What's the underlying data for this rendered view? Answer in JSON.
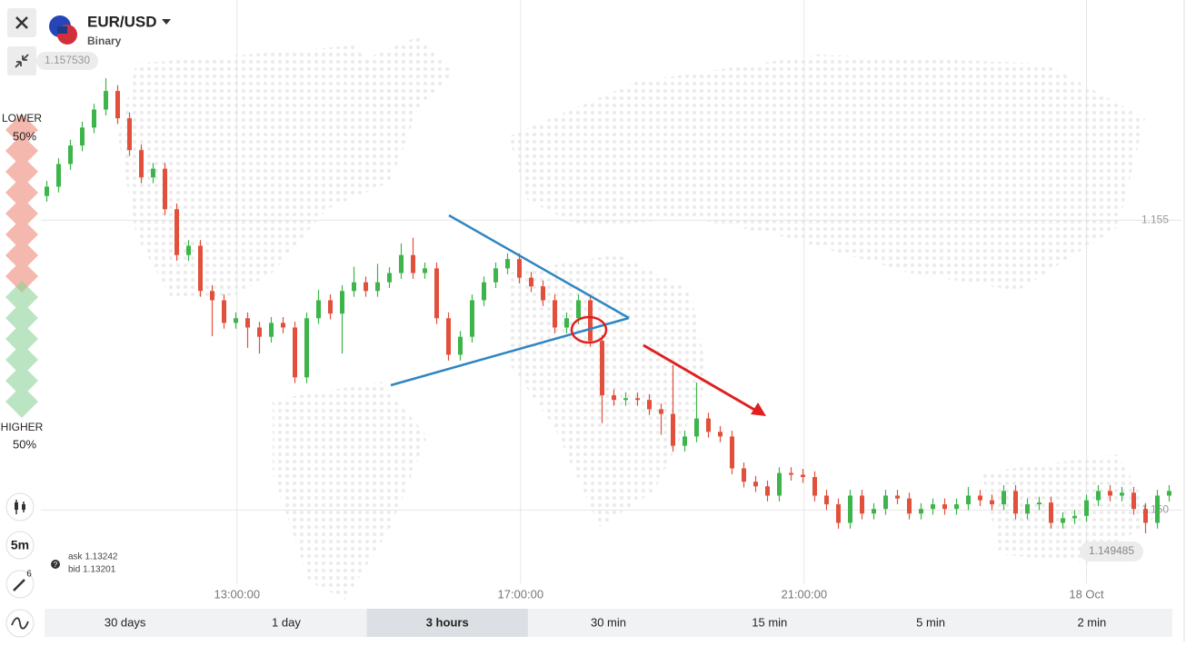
{
  "header": {
    "asset": "EUR/USD",
    "mode": "Binary",
    "max_price_label": "1.157530"
  },
  "sentiment": {
    "lower_label": "LOWER",
    "lower_pct": "50%",
    "higher_label": "HIGHER",
    "higher_pct": "50%"
  },
  "toolbar": {
    "interval": "5m",
    "drawings_count": "6"
  },
  "quote": {
    "ask": "ask 1.13242",
    "bid": "bid 1.13201"
  },
  "chart_data": {
    "type": "candlestick",
    "up_color": "#3db54a",
    "down_color": "#e2503c",
    "grid": true,
    "last_price_label": "1.149485",
    "xlim": [
      0,
      96
    ],
    "xticks": [
      {
        "value": 16.6,
        "label": "13:00:00"
      },
      {
        "value": 40.6,
        "label": "17:00:00"
      },
      {
        "value": 64.6,
        "label": "21:00:00"
      },
      {
        "value": 88.5,
        "label": "18 Oct"
      }
    ],
    "ylim": [
      1.1484,
      1.1588
    ],
    "yticks": [
      1.155,
      {
        "value": 1.15,
        "label": "1.150"
      }
    ],
    "open": [
      1.15542,
      1.15558,
      1.15597,
      1.15629,
      1.1566,
      1.15691,
      1.15723,
      1.15676,
      1.15621,
      1.15574,
      1.15589,
      1.15519,
      1.1544,
      1.15456,
      1.15378,
      1.15362,
      1.15323,
      1.15331,
      1.15315,
      1.15299,
      1.15323,
      1.15315,
      1.15229,
      1.15331,
      1.15362,
      1.15339,
      1.15378,
      1.15393,
      1.15378,
      1.15393,
      1.15409,
      1.1544,
      1.15409,
      1.15417,
      1.15331,
      1.15268,
      1.15299,
      1.15362,
      1.15393,
      1.15417,
      1.15433,
      1.15401,
      1.15386,
      1.15362,
      1.15315,
      1.15331,
      1.15362,
      1.15292,
      1.15198,
      1.1519,
      1.15193,
      1.1519,
      1.15174,
      1.15166,
      1.15111,
      1.15127,
      1.15158,
      1.15135,
      1.15127,
      1.15072,
      1.15049,
      1.15041,
      1.15025,
      1.15064,
      1.15061,
      1.15057,
      1.15025,
      1.1501,
      1.14978,
      1.15025,
      1.14994,
      1.15002,
      1.15025,
      1.1502,
      1.14994,
      1.15002,
      1.1501,
      1.15002,
      1.1501,
      1.15025,
      1.15017,
      1.1501,
      1.15033,
      1.14994,
      1.1501,
      1.15013,
      1.14978,
      1.14986,
      1.1499,
      1.15017,
      1.15033,
      1.15025,
      1.1503,
      1.15002,
      1.14978,
      1.15025
    ],
    "high": [
      1.15568,
      1.15607,
      1.15639,
      1.1567,
      1.15701,
      1.15745,
      1.15733,
      1.15686,
      1.15631,
      1.15599,
      1.15599,
      1.15529,
      1.15466,
      1.15466,
      1.15388,
      1.15372,
      1.15341,
      1.15341,
      1.15325,
      1.15333,
      1.15333,
      1.15325,
      1.15341,
      1.1538,
      1.15372,
      1.15388,
      1.1542,
      1.15403,
      1.15425,
      1.15419,
      1.1546,
      1.1547,
      1.15427,
      1.15427,
      1.15341,
      1.15309,
      1.15372,
      1.15403,
      1.15427,
      1.15443,
      1.15443,
      1.15411,
      1.15396,
      1.15372,
      1.15341,
      1.15372,
      1.15372,
      1.15302,
      1.15208,
      1.15203,
      1.15203,
      1.152,
      1.15184,
      1.1525,
      1.15137,
      1.1522,
      1.15168,
      1.15145,
      1.15137,
      1.15082,
      1.15059,
      1.15051,
      1.15074,
      1.15074,
      1.15071,
      1.15067,
      1.15035,
      1.1502,
      1.15035,
      1.15035,
      1.15012,
      1.15035,
      1.15035,
      1.1503,
      1.15012,
      1.1502,
      1.1502,
      1.1502,
      1.1504,
      1.15035,
      1.15027,
      1.15043,
      1.15043,
      1.1502,
      1.15023,
      1.15023,
      1.14996,
      1.15,
      1.15027,
      1.15043,
      1.15043,
      1.1504,
      1.1504,
      1.15012,
      1.15035,
      1.15043
    ],
    "low": [
      1.15532,
      1.15548,
      1.15587,
      1.15619,
      1.1565,
      1.15681,
      1.15666,
      1.15611,
      1.15564,
      1.15564,
      1.15509,
      1.1543,
      1.1543,
      1.15368,
      1.153,
      1.15313,
      1.15313,
      1.1528,
      1.1527,
      1.15289,
      1.15305,
      1.15219,
      1.15219,
      1.15321,
      1.15329,
      1.1527,
      1.15368,
      1.15368,
      1.15368,
      1.15383,
      1.15399,
      1.15399,
      1.15399,
      1.15321,
      1.15258,
      1.15258,
      1.15289,
      1.15352,
      1.15383,
      1.15407,
      1.15391,
      1.15376,
      1.15352,
      1.15305,
      1.15305,
      1.15321,
      1.15282,
      1.1515,
      1.1518,
      1.1518,
      1.1518,
      1.15164,
      1.1513,
      1.15101,
      1.15101,
      1.15117,
      1.15125,
      1.15117,
      1.15062,
      1.15039,
      1.15031,
      1.15015,
      1.15015,
      1.15051,
      1.15047,
      1.15015,
      1.15,
      1.14968,
      1.14968,
      1.14984,
      1.14984,
      1.14992,
      1.1501,
      1.14984,
      1.14984,
      1.14992,
      1.14992,
      1.14992,
      1.15,
      1.15007,
      1.15,
      1.15,
      1.14984,
      1.14984,
      1.15,
      1.14968,
      1.14968,
      1.14976,
      1.1498,
      1.15007,
      1.15015,
      1.15015,
      1.14992,
      1.1496,
      1.14968,
      1.15015
    ],
    "close": [
      1.15558,
      1.15597,
      1.15629,
      1.1566,
      1.15691,
      1.15723,
      1.15676,
      1.15621,
      1.15574,
      1.15589,
      1.15519,
      1.1544,
      1.15456,
      1.15378,
      1.15362,
      1.15323,
      1.15331,
      1.15315,
      1.15299,
      1.15323,
      1.15315,
      1.15229,
      1.15331,
      1.15362,
      1.15339,
      1.15378,
      1.15393,
      1.15378,
      1.15393,
      1.15409,
      1.1544,
      1.15409,
      1.15417,
      1.15331,
      1.15268,
      1.15299,
      1.15362,
      1.15393,
      1.15417,
      1.15433,
      1.15401,
      1.15386,
      1.15362,
      1.15315,
      1.15331,
      1.15362,
      1.15292,
      1.15198,
      1.1519,
      1.15193,
      1.1519,
      1.15174,
      1.15166,
      1.15111,
      1.15127,
      1.15158,
      1.15135,
      1.15127,
      1.15072,
      1.15049,
      1.15041,
      1.15025,
      1.15064,
      1.15061,
      1.15057,
      1.15025,
      1.1501,
      1.14978,
      1.15025,
      1.14994,
      1.15002,
      1.15025,
      1.1502,
      1.14994,
      1.15002,
      1.1501,
      1.15002,
      1.1501,
      1.15025,
      1.15017,
      1.1501,
      1.15033,
      1.14994,
      1.1501,
      1.15013,
      1.14978,
      1.14986,
      1.1499,
      1.15017,
      1.15033,
      1.15025,
      1.1503,
      1.15002,
      1.14978,
      1.15025,
      1.15033
    ]
  },
  "periods": {
    "options": [
      "30 days",
      "1 day",
      "3 hours",
      "30 min",
      "15 min",
      "5 min",
      "2 min"
    ],
    "active": 2
  }
}
